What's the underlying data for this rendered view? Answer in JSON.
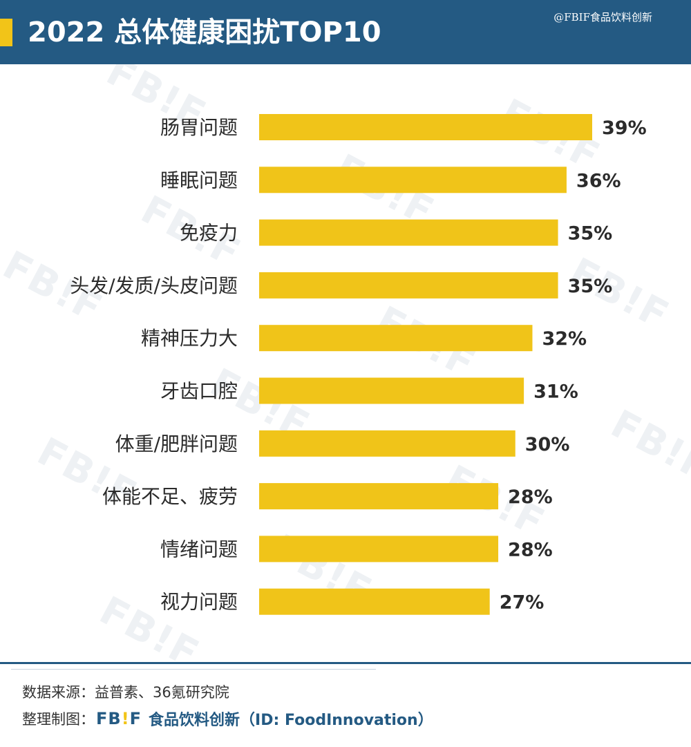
{
  "header": {
    "title": "2022 总体健康困扰TOP10",
    "credit": "@FBIF食品饮料创新"
  },
  "colors": {
    "header_bg": "#245a83",
    "accent": "#f2c418",
    "bar": "#f0c419",
    "text": "#2b2b2b"
  },
  "chart_data": {
    "type": "bar",
    "orientation": "horizontal",
    "title": "",
    "categories": [
      "肠胃问题",
      "睡眠问题",
      "免疫力",
      "头发/发质/头皮问题",
      "精神压力大",
      "牙齿口腔",
      "体重/肥胖问题",
      "体能不足、疲劳",
      "情绪问题",
      "视力问题"
    ],
    "values": [
      39,
      36,
      35,
      35,
      32,
      31,
      30,
      28,
      28,
      27
    ],
    "value_labels": [
      "39%",
      "36%",
      "35%",
      "35%",
      "32%",
      "31%",
      "30%",
      "28%",
      "28%",
      "27%"
    ],
    "unit": "%",
    "xlim": [
      0,
      39
    ],
    "grid": false,
    "legend": "none"
  },
  "footer": {
    "source": "数据来源：益普素、36氪研究院",
    "org_label": "整理制图：",
    "brand_logo": "FB!F",
    "brand_text": "食品饮料创新（ID: FoodInnovation）"
  },
  "watermark": "FB!F"
}
